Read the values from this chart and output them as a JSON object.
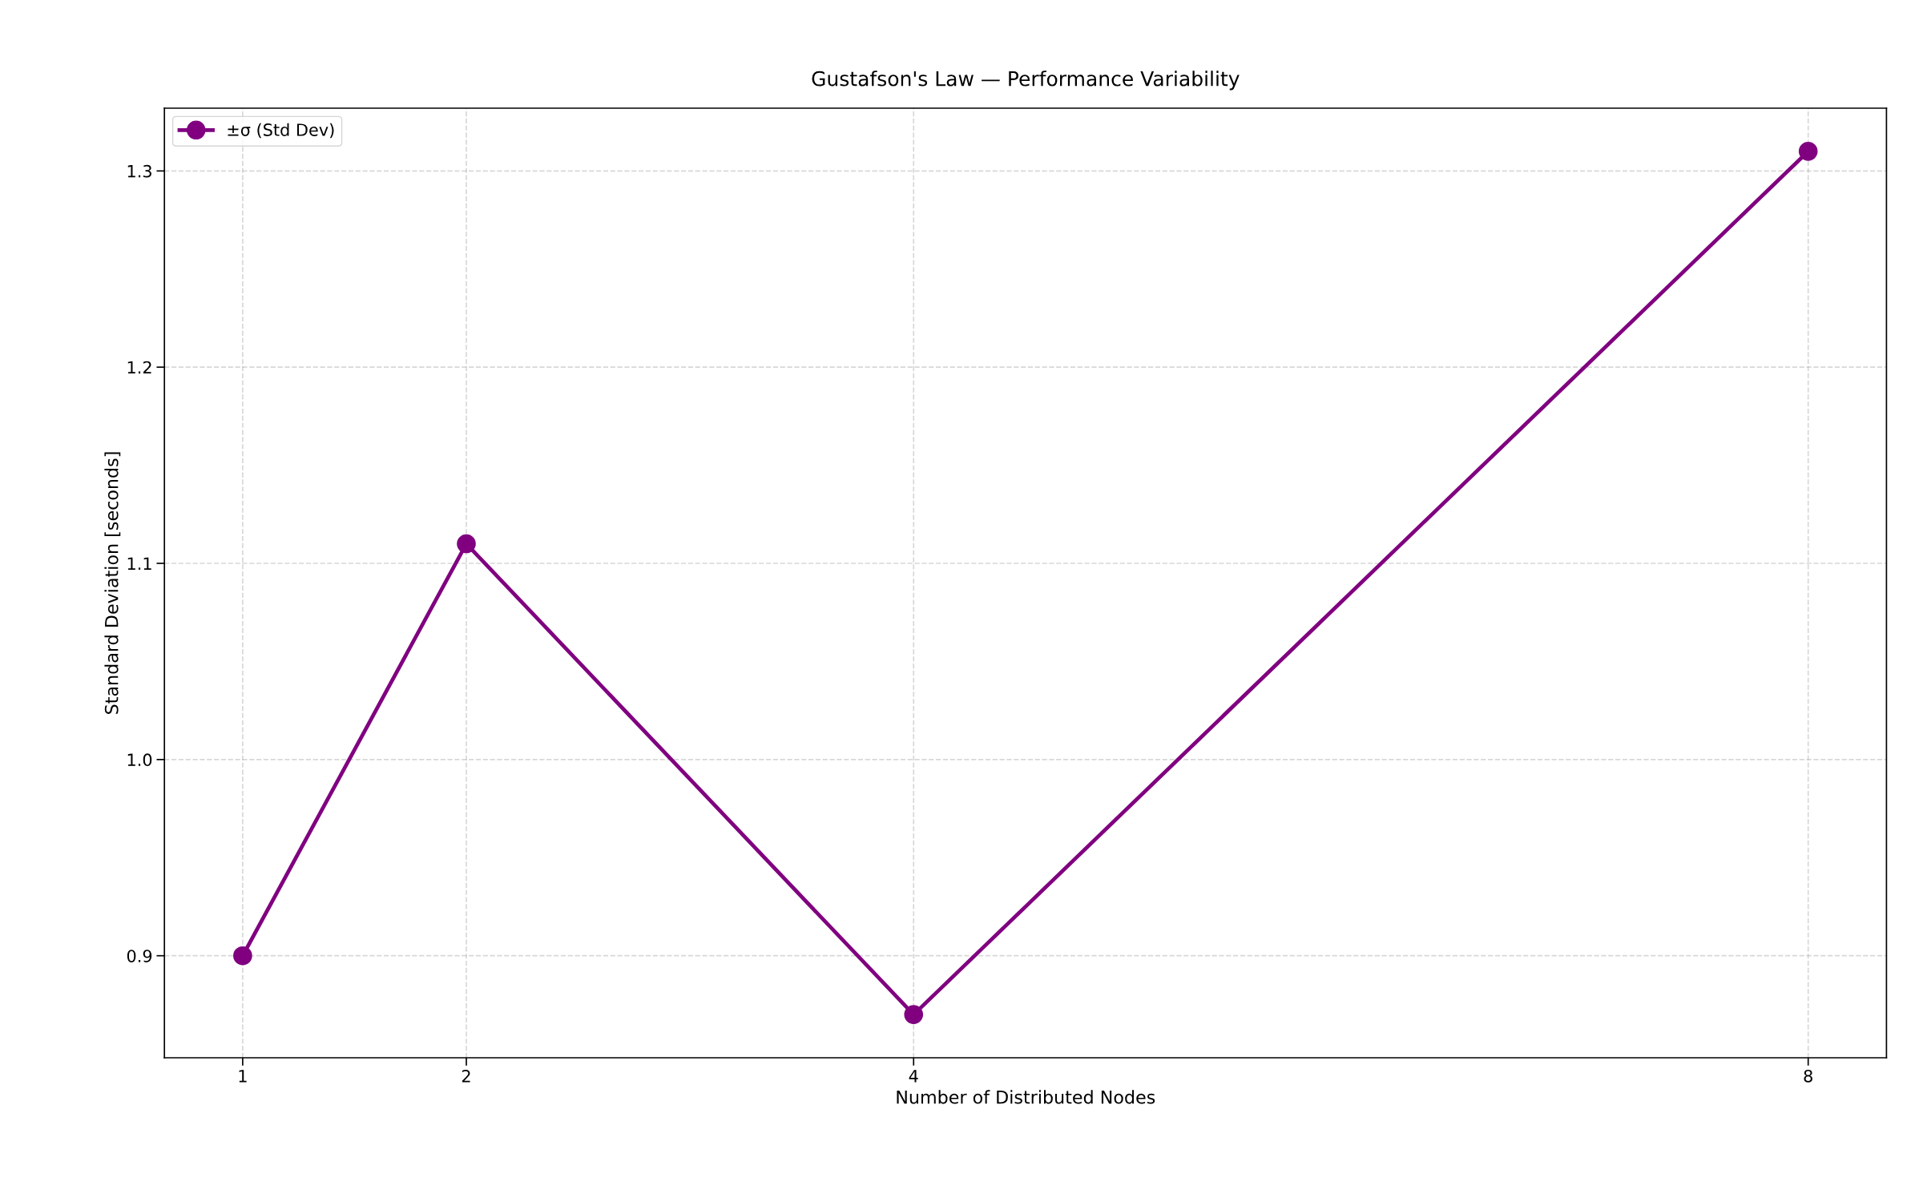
{
  "chart_data": {
    "type": "line",
    "title": "Gustafson's Law — Performance Variability",
    "xlabel": "Number of Distributed Nodes",
    "ylabel": "Standard Deviation [seconds]",
    "x": [
      1,
      2,
      4,
      8
    ],
    "series": [
      {
        "name": "±σ (Std Dev)",
        "color": "#800080",
        "values": [
          0.9,
          1.11,
          0.87,
          1.31
        ]
      }
    ],
    "xlim": [
      0.65,
      8.35
    ],
    "xticks": [
      1,
      2,
      4,
      8
    ],
    "ylim": [
      0.848,
      1.332
    ],
    "yticks": [
      {
        "value": 0.9,
        "label": "0.9"
      },
      {
        "value": 1.0,
        "label": "1.0"
      },
      {
        "value": 1.1,
        "label": "1.1"
      },
      {
        "value": 1.2,
        "label": "1.2"
      },
      {
        "value": 1.3,
        "label": "1.3"
      }
    ],
    "grid": true,
    "legend": "top left",
    "marker": "circle",
    "line_style": "solid"
  }
}
